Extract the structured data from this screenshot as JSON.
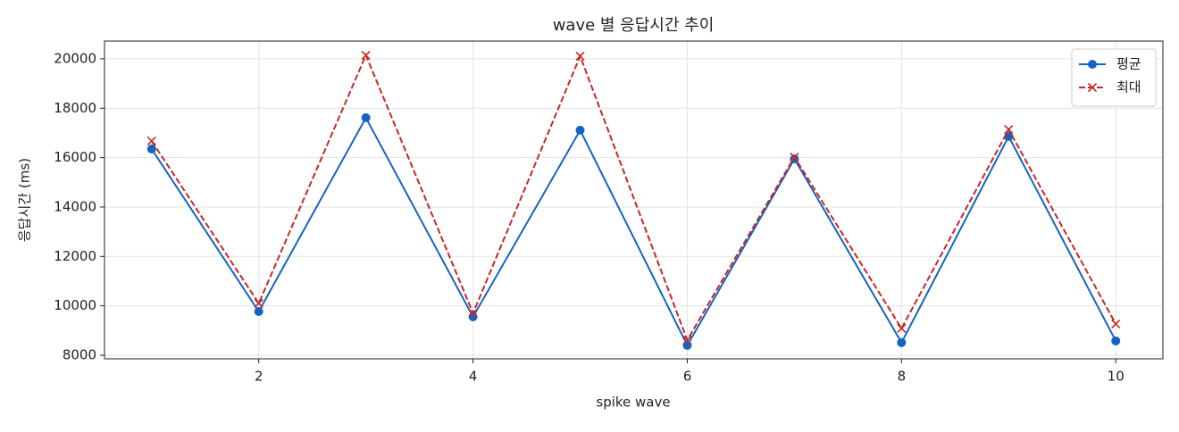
{
  "chart_data": {
    "type": "line",
    "title": "wave 별 응답시간 추이",
    "x_label": "spike wave",
    "y_label": "응답시간 (ms)",
    "x": [
      1,
      2,
      3,
      4,
      5,
      6,
      7,
      8,
      9,
      10
    ],
    "series": [
      {
        "name": "평균",
        "color": "#1565c0",
        "marker": "o",
        "linestyle": "solid",
        "values": [
          16350,
          9770,
          17615,
          9555,
          17110,
          8400,
          15950,
          8510,
          16860,
          8580
        ]
      },
      {
        "name": "최대",
        "color": "#c62828",
        "marker": "x",
        "linestyle": "dashed",
        "values": [
          16675,
          10100,
          20145,
          9700,
          20110,
          8615,
          16025,
          9085,
          17140,
          9265
        ]
      }
    ],
    "xlim": [
      0.56,
      10.44
    ],
    "xticks": [
      2,
      4,
      6,
      8,
      10
    ],
    "ylim": [
      7855,
      20720
    ],
    "yticks": [
      8000,
      10000,
      12000,
      14000,
      16000,
      18000,
      20000
    ],
    "grid": true,
    "legend": "upper right"
  }
}
